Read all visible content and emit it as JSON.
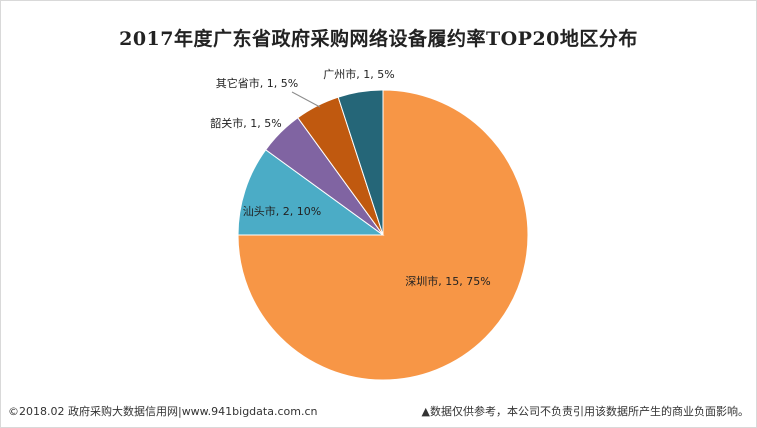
{
  "chart_data": {
    "type": "pie",
    "title": "2017年度广东省政府采购网络设备履约率TOP20地区分布",
    "slices": [
      {
        "name": "深圳市",
        "value": 15,
        "percent": "75%",
        "color": "#f79646"
      },
      {
        "name": "汕头市",
        "value": 2,
        "percent": "10%",
        "color": "#4bacc6"
      },
      {
        "name": "韶关市",
        "value": 1,
        "percent": "5%",
        "color": "#8064a2"
      },
      {
        "name": "其它省市",
        "value": 1,
        "percent": "5%",
        "color": "#c0590f"
      },
      {
        "name": "广州市",
        "value": 1,
        "percent": "5%",
        "color": "#256678"
      }
    ],
    "labels": [
      "深圳市, 15, 75%",
      "汕头市, 2, 10%",
      "韶关市, 1, 5%",
      "其它省市, 1, 5%",
      "广州市, 1, 5%"
    ]
  },
  "footer": {
    "left": "©2018.02 政府采购大数据信用网|www.941bigdata.com.cn",
    "right": "▲数据仅供参考，本公司不负责引用该数据所产生的商业负面影响。"
  }
}
